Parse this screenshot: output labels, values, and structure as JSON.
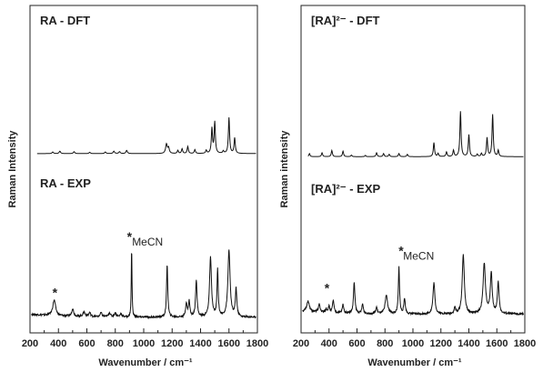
{
  "chart_data": [
    {
      "type": "line",
      "panel": "left",
      "xlabel": "Wavenumber / cm⁻¹",
      "ylabel": "Raman Intensity",
      "xlim": [
        200,
        1800
      ],
      "ylim": [
        0,
        2.1
      ],
      "xticks": [
        "200",
        "400",
        "600",
        "800",
        "1000",
        "1200",
        "1400",
        "1600",
        "1800"
      ],
      "series": [
        {
          "name": "RA - DFT",
          "baseline": 1.15,
          "peaks": [
            [
              360,
              0.01,
              6
            ],
            [
              410,
              0.015,
              6
            ],
            [
              510,
              0.012,
              6
            ],
            [
              620,
              0.008,
              6
            ],
            [
              730,
              0.01,
              6
            ],
            [
              790,
              0.015,
              6
            ],
            [
              830,
              0.012,
              6
            ],
            [
              880,
              0.02,
              6
            ],
            [
              1160,
              0.06,
              7
            ],
            [
              1175,
              0.035,
              6
            ],
            [
              1240,
              0.02,
              5
            ],
            [
              1270,
              0.03,
              5
            ],
            [
              1310,
              0.045,
              5
            ],
            [
              1360,
              0.025,
              5
            ],
            [
              1440,
              0.02,
              5
            ],
            [
              1480,
              0.16,
              5
            ],
            [
              1500,
              0.2,
              5
            ],
            [
              1560,
              0.015,
              5
            ],
            [
              1600,
              0.23,
              5
            ],
            [
              1640,
              0.1,
              5
            ]
          ],
          "annotations": []
        },
        {
          "name": "RA - EXP",
          "baseline": 0.1,
          "peaks": [
            [
              370,
              0.1,
              12
            ],
            [
              500,
              0.05,
              8
            ],
            [
              580,
              0.03,
              8
            ],
            [
              620,
              0.025,
              8
            ],
            [
              700,
              0.025,
              8
            ],
            [
              760,
              0.025,
              8
            ],
            [
              800,
              0.025,
              8
            ],
            [
              840,
              0.02,
              8
            ],
            [
              915,
              0.45,
              3
            ],
            [
              1165,
              0.34,
              5
            ],
            [
              1300,
              0.09,
              6
            ],
            [
              1320,
              0.1,
              6
            ],
            [
              1370,
              0.24,
              6
            ],
            [
              1470,
              0.38,
              8
            ],
            [
              1520,
              0.3,
              5
            ],
            [
              1600,
              0.43,
              9
            ],
            [
              1650,
              0.18,
              6
            ]
          ],
          "annotations": [
            {
              "x": 375,
              "y": 0.23,
              "label": "*"
            },
            {
              "x": 900,
              "y": 0.59,
              "label": "*"
            },
            {
              "x": 918,
              "y": 0.56,
              "label": "MeCN"
            }
          ]
        }
      ]
    },
    {
      "type": "line",
      "panel": "right",
      "xlabel": "Wavenumber / cm⁻¹",
      "ylabel": "Raman intensity",
      "xlim": [
        200,
        1800
      ],
      "ylim": [
        0,
        2.1
      ],
      "xticks": [
        "200",
        "400",
        "600",
        "800",
        "1000",
        "1200",
        "1400",
        "1600",
        "1800"
      ],
      "series": [
        {
          "name": "[RA]²⁻ - DFT",
          "baseline": 1.13,
          "peaks": [
            [
              260,
              0.02,
              5
            ],
            [
              350,
              0.025,
              5
            ],
            [
              420,
              0.04,
              5
            ],
            [
              500,
              0.035,
              5
            ],
            [
              560,
              0.01,
              5
            ],
            [
              660,
              0.008,
              5
            ],
            [
              740,
              0.025,
              5
            ],
            [
              790,
              0.02,
              5
            ],
            [
              830,
              0.015,
              5
            ],
            [
              900,
              0.02,
              5
            ],
            [
              960,
              0.015,
              5
            ],
            [
              1150,
              0.09,
              5
            ],
            [
              1180,
              0.02,
              5
            ],
            [
              1240,
              0.03,
              5
            ],
            [
              1290,
              0.04,
              5
            ],
            [
              1340,
              0.29,
              5
            ],
            [
              1400,
              0.14,
              5
            ],
            [
              1460,
              0.015,
              5
            ],
            [
              1490,
              0.02,
              5
            ],
            [
              1530,
              0.12,
              5
            ],
            [
              1570,
              0.27,
              5
            ],
            [
              1610,
              0.04,
              5
            ]
          ],
          "annotations": []
        },
        {
          "name": "[RA]²⁻ - EXP",
          "baseline": 0.12,
          "peaks": [
            [
              250,
              0.07,
              10
            ],
            [
              330,
              0.05,
              7
            ],
            [
              380,
              0.02,
              6
            ],
            [
              400,
              0.04,
              6
            ],
            [
              430,
              0.08,
              6
            ],
            [
              500,
              0.055,
              6
            ],
            [
              580,
              0.2,
              6
            ],
            [
              640,
              0.06,
              6
            ],
            [
              740,
              0.04,
              6
            ],
            [
              810,
              0.12,
              10
            ],
            [
              900,
              0.3,
              5
            ],
            [
              940,
              0.1,
              6
            ],
            [
              1150,
              0.2,
              8
            ],
            [
              1300,
              0.04,
              6
            ],
            [
              1360,
              0.38,
              9
            ],
            [
              1510,
              0.32,
              10
            ],
            [
              1560,
              0.26,
              8
            ],
            [
              1610,
              0.2,
              7
            ]
          ],
          "annotations": [
            {
              "x": 385,
              "y": 0.26,
              "label": "*"
            },
            {
              "x": 915,
              "y": 0.5,
              "label": "*"
            },
            {
              "x": 930,
              "y": 0.47,
              "label": "MeCN"
            }
          ]
        }
      ]
    }
  ]
}
